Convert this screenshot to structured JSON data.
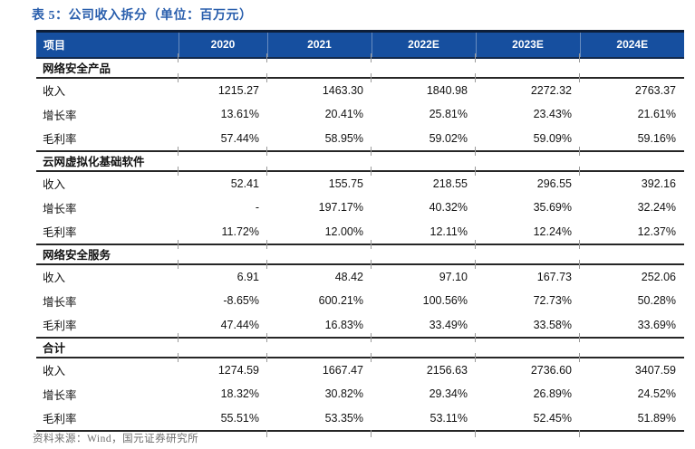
{
  "title": "表 5：公司收入拆分（单位：百万元）",
  "source": "资料来源：Wind，国元证券研究所",
  "colors": {
    "title_text": "#2a5fad",
    "header_bg": "#164f9f",
    "header_text": "#ffffff",
    "rule_line": "#262626",
    "body_text": "#131313",
    "source_text": "#6e6e6e"
  },
  "table": {
    "columns": [
      "项目",
      "2020",
      "2021",
      "2022E",
      "2023E",
      "2024E"
    ],
    "sections": [
      {
        "name": "网络安全产品",
        "rows": [
          {
            "label": "收入",
            "values": [
              "1215.27",
              "1463.30",
              "1840.98",
              "2272.32",
              "2763.37"
            ]
          },
          {
            "label": "增长率",
            "values": [
              "13.61%",
              "20.41%",
              "25.81%",
              "23.43%",
              "21.61%"
            ]
          },
          {
            "label": "毛利率",
            "values": [
              "57.44%",
              "58.95%",
              "59.02%",
              "59.09%",
              "59.16%"
            ]
          }
        ]
      },
      {
        "name": "云网虚拟化基础软件",
        "rows": [
          {
            "label": "收入",
            "values": [
              "52.41",
              "155.75",
              "218.55",
              "296.55",
              "392.16"
            ]
          },
          {
            "label": "增长率",
            "values": [
              "-",
              "197.17%",
              "40.32%",
              "35.69%",
              "32.24%"
            ]
          },
          {
            "label": "毛利率",
            "values": [
              "11.72%",
              "12.00%",
              "12.11%",
              "12.24%",
              "12.37%"
            ]
          }
        ]
      },
      {
        "name": "网络安全服务",
        "rows": [
          {
            "label": "收入",
            "values": [
              "6.91",
              "48.42",
              "97.10",
              "167.73",
              "252.06"
            ]
          },
          {
            "label": "增长率",
            "values": [
              "-8.65%",
              "600.21%",
              "100.56%",
              "72.73%",
              "50.28%"
            ]
          },
          {
            "label": "毛利率",
            "values": [
              "47.44%",
              "16.83%",
              "33.49%",
              "33.58%",
              "33.69%"
            ]
          }
        ]
      },
      {
        "name": "合计",
        "rows": [
          {
            "label": "收入",
            "values": [
              "1274.59",
              "1667.47",
              "2156.63",
              "2736.60",
              "3407.59"
            ]
          },
          {
            "label": "增长率",
            "values": [
              "18.32%",
              "30.82%",
              "29.34%",
              "26.89%",
              "24.52%"
            ]
          },
          {
            "label": "毛利率",
            "values": [
              "55.51%",
              "53.35%",
              "53.11%",
              "52.45%",
              "51.89%"
            ]
          }
        ]
      }
    ]
  }
}
